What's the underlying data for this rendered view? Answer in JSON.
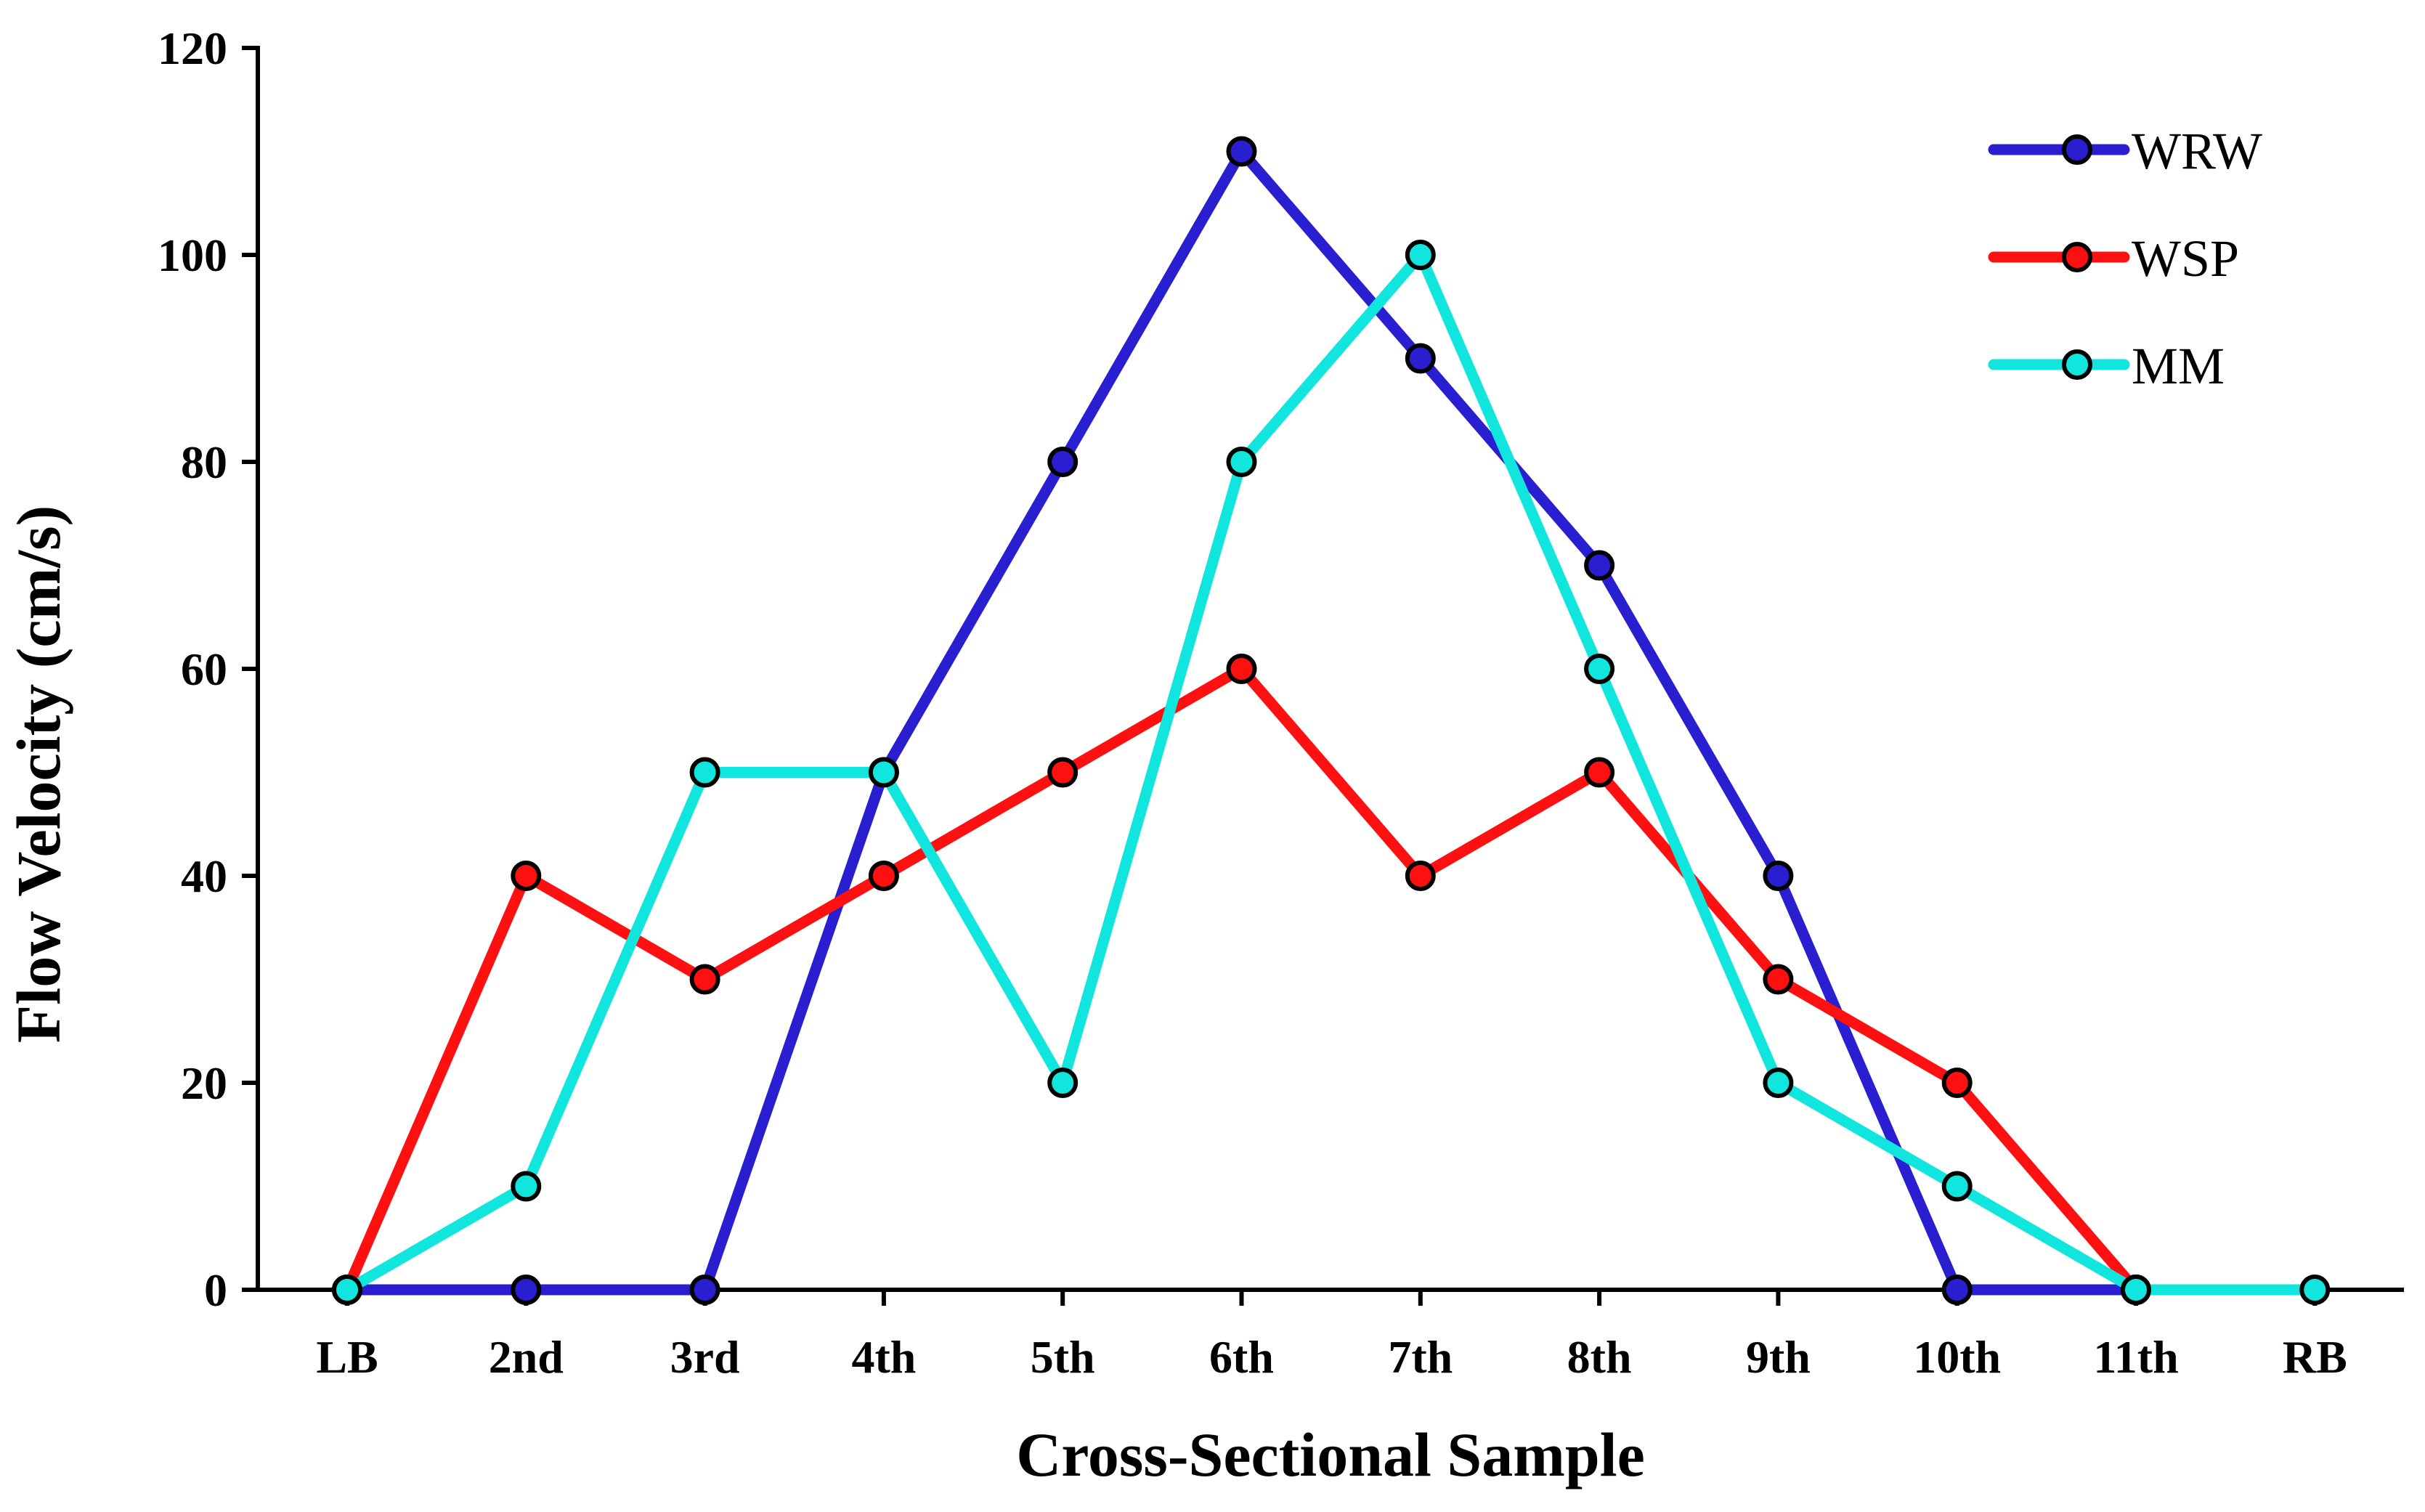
{
  "chart_data": {
    "type": "line",
    "title": "",
    "xlabel": "Cross-Sectional Sample",
    "ylabel": "Flow Velocity (cm/s)",
    "categories": [
      "LB",
      "2nd",
      "3rd",
      "4th",
      "5th",
      "6th",
      "7th",
      "8th",
      "9th",
      "10th",
      "11th",
      "RB"
    ],
    "ylim": [
      0,
      120
    ],
    "yticks": [
      0,
      20,
      40,
      60,
      80,
      100,
      120
    ],
    "ytick_labels": [
      "0",
      "20",
      "40",
      "60",
      "80",
      "100",
      "120"
    ],
    "grid": false,
    "legend_position": "top-right",
    "series": [
      {
        "name": "WRW",
        "color": "#2a1fd0",
        "values": [
          0,
          0,
          0,
          50,
          80,
          110,
          90,
          70,
          40,
          0,
          0,
          null
        ]
      },
      {
        "name": "WSP",
        "color": "#ff1010",
        "values": [
          0,
          40,
          30,
          40,
          50,
          60,
          40,
          50,
          30,
          20,
          0,
          null
        ]
      },
      {
        "name": "MM",
        "color": "#10e6de",
        "values": [
          0,
          10,
          50,
          50,
          20,
          80,
          100,
          60,
          20,
          10,
          0,
          0
        ]
      }
    ]
  }
}
